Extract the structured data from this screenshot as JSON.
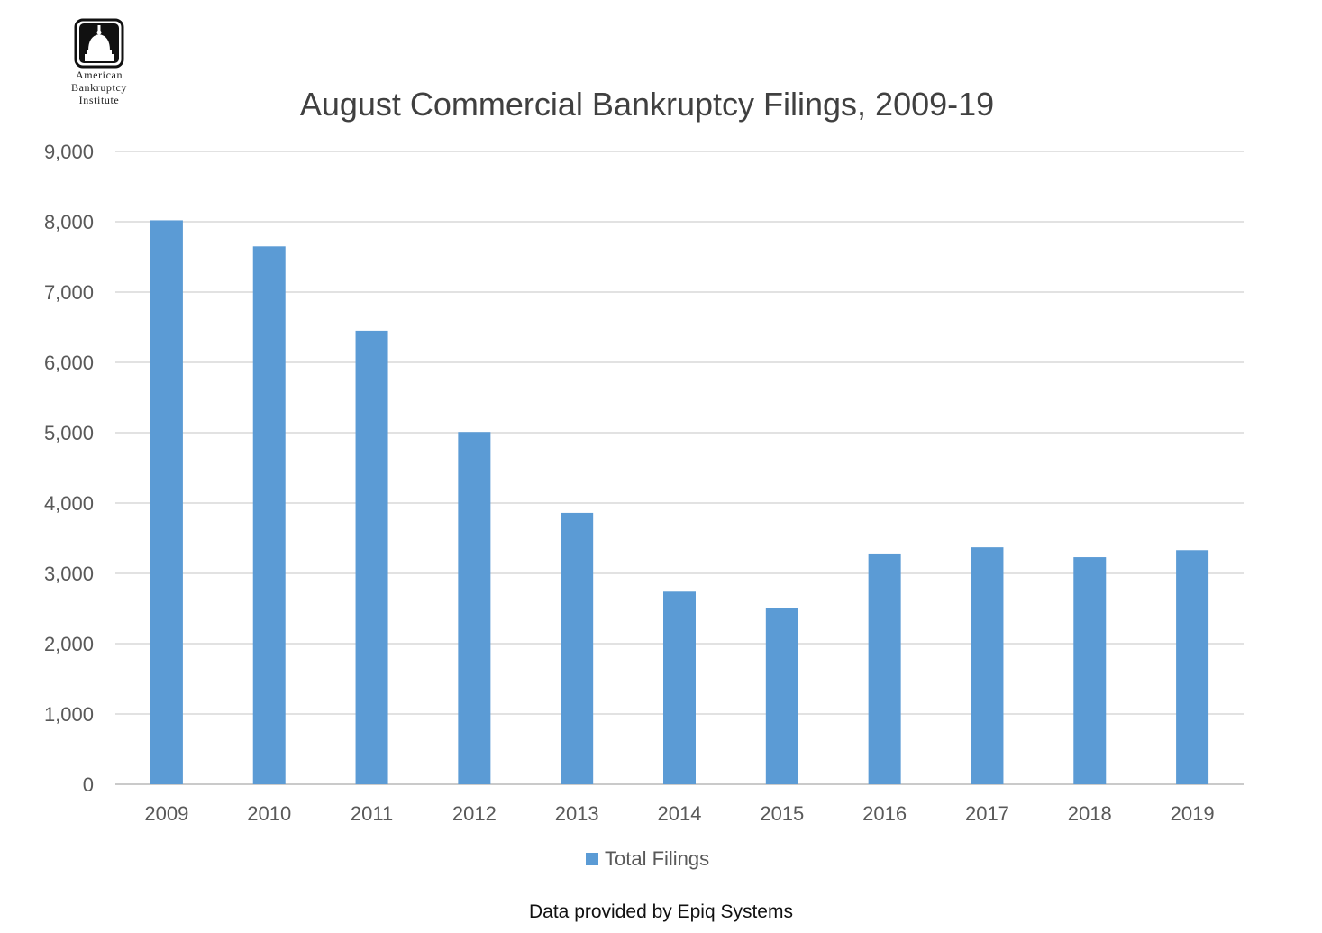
{
  "logo": {
    "lines": [
      "American",
      "Bankruptcy",
      "Institute"
    ],
    "icon": "capitol-dome-icon"
  },
  "footer": {
    "note": "Data provided by Epiq Systems"
  },
  "colors": {
    "bar": "#5b9bd5",
    "grid": "#d9d9d9",
    "text": "#595959",
    "title": "#404040"
  },
  "chart_data": {
    "type": "bar",
    "title": "August Commercial Bankruptcy Filings, 2009-19",
    "xlabel": "",
    "ylabel": "",
    "categories": [
      "2009",
      "2010",
      "2011",
      "2012",
      "2013",
      "2014",
      "2015",
      "2016",
      "2017",
      "2018",
      "2019"
    ],
    "series": [
      {
        "name": "Total Filings",
        "values": [
          8020,
          7650,
          6450,
          5010,
          3860,
          2740,
          2510,
          3270,
          3370,
          3230,
          3330
        ]
      }
    ],
    "ylim": [
      0,
      9000
    ],
    "yticks": [
      0,
      1000,
      2000,
      3000,
      4000,
      5000,
      6000,
      7000,
      8000,
      9000
    ],
    "ytick_labels": [
      "0",
      "1,000",
      "2,000",
      "3,000",
      "4,000",
      "5,000",
      "6,000",
      "7,000",
      "8,000",
      "9,000"
    ],
    "grid": true,
    "legend_position": "bottom"
  }
}
